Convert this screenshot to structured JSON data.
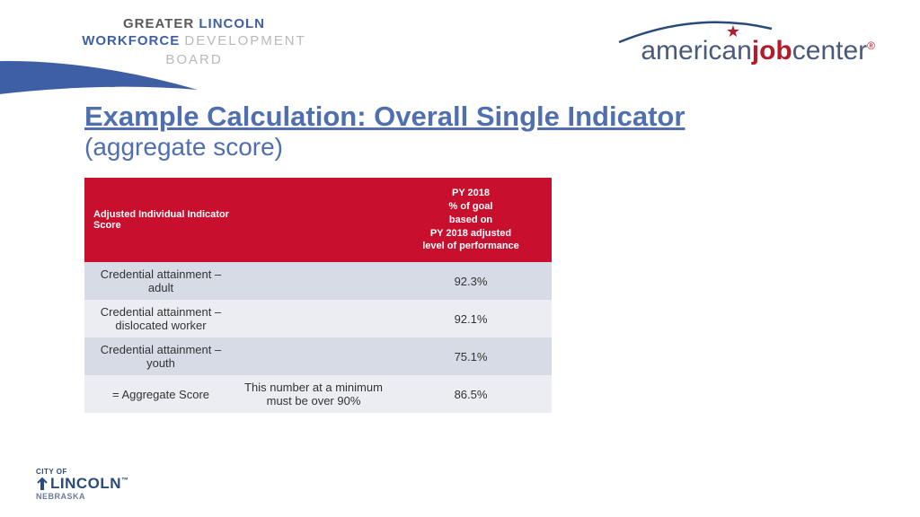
{
  "logos": {
    "glw": {
      "line1_pre": "GREATER ",
      "line1_em": "LINCOLN",
      "line2_wf": "WORKFORCE ",
      "line2_dev": "DEVELOPMENT",
      "line3": "BOARD"
    },
    "ajc": {
      "am": "american",
      "job": "job",
      "center": "center",
      "reg": "®"
    },
    "lincoln": {
      "cityof": "CITY OF",
      "name": "LINCOLN",
      "tm": "™",
      "neb": "NEBRASKA"
    }
  },
  "title": {
    "main": "Example Calculation: Overall Single Indicator",
    "sub": "(aggregate score)"
  },
  "table": {
    "columns": [
      "Adjusted Individual Indicator Score",
      "",
      "PY 2018\n% of goal\nbased on\nPY 2018 adjusted\nlevel of performance"
    ],
    "rows": [
      {
        "label": "Credential attainment – adult",
        "note": "",
        "value": "92.3%"
      },
      {
        "label": "Credential attainment – dislocated worker",
        "note": "",
        "value": "92.1%"
      },
      {
        "label": "Credential attainment – youth",
        "note": "",
        "value": "75.1%"
      },
      {
        "label": "= Aggregate Score",
        "note": "This number at a minimum must be over 90%",
        "value": "86.5%"
      }
    ],
    "colors": {
      "header_bg": "#c8102e",
      "header_text": "#ffffff",
      "row_odd_bg": "#d7dbe6",
      "row_even_bg": "#ecedf2",
      "cell_text": "#333333"
    },
    "fontsize": {
      "header": 11,
      "cell": 13
    }
  },
  "colors": {
    "title": "#4f6fb0",
    "swoosh": "#3f5fa5",
    "ajc_red": "#b01c2e",
    "ajc_blue": "#4a5a7a",
    "lincoln_blue": "#2a4a7a"
  }
}
